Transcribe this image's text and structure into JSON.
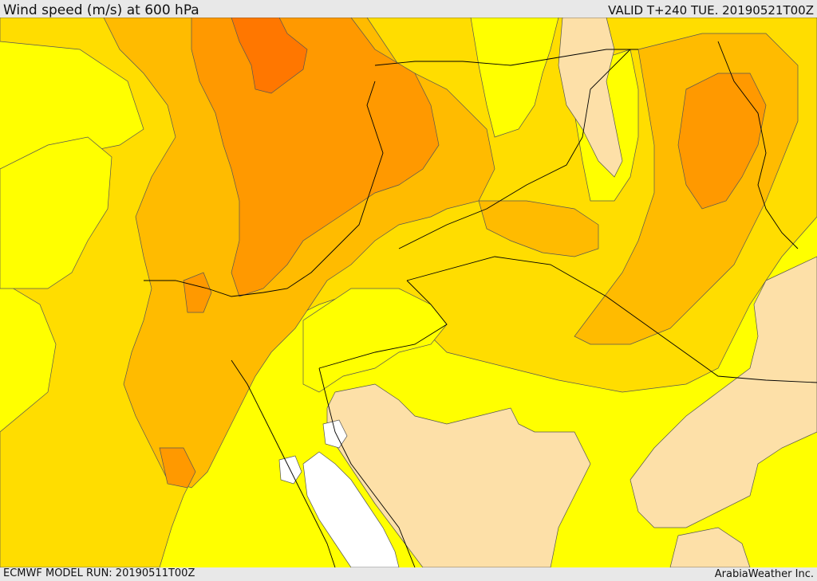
{
  "header": {
    "title": "Wind speed (m/s) at 600 hPa",
    "valid": "VALID T+240 TUE. 20190521T00Z"
  },
  "footer": {
    "model_run": "ECMWF MODEL RUN: 20190511T00Z",
    "credit": "ArabiaWeather Inc."
  },
  "colors": {
    "band_very_low": "#ffffff",
    "band_low": "#fde0a8",
    "band_1": "#ffff00",
    "band_2": "#ffdd00",
    "band_3": "#ffbb00",
    "band_4": "#ff9900",
    "band_5": "#ff7700",
    "contour_line": "#555555",
    "border_line": "#000000"
  }
}
